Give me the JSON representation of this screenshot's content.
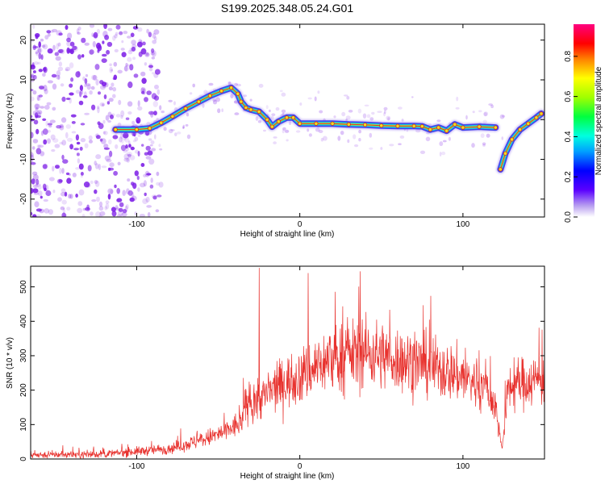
{
  "title": "S199.2025.348.05.24.G01",
  "colors": {
    "snr_line": "#e8322e",
    "background": "#ffffff",
    "scatter_purple": "#7a19e6",
    "track_core": "#e02020",
    "track_mid": "#25e6b0",
    "track_outer": "#3b3bea"
  },
  "chart_data": [
    {
      "type": "heatmap",
      "xlabel": "Height of straight line (km)",
      "ylabel": "Frequency (Hz)",
      "xlim": [
        -165,
        150
      ],
      "ylim": [
        -24.5,
        24
      ],
      "xticks": [
        -100,
        0,
        100
      ],
      "xtick_labels": [
        "-100",
        "0",
        "100"
      ],
      "yticks": [
        -20,
        -10,
        0,
        10,
        20
      ],
      "ytick_labels": [
        "-20",
        "-10",
        "0",
        "10",
        "20"
      ],
      "colorbar": {
        "label": "Normalized spectral amplitude",
        "range": [
          0,
          0.96
        ],
        "ticks": [
          0.0,
          0.2,
          0.4,
          0.6,
          0.8
        ],
        "tick_labels": [
          "0.0",
          "0.2",
          "0.4",
          "0.6",
          "0.8"
        ],
        "colormap": "rainbow (violet to magenta)"
      },
      "track_main": {
        "description": "dominant spectral peak frequency vs height",
        "x": [
          -113,
          -100,
          -92,
          -85,
          -78,
          -70,
          -62,
          -55,
          -48,
          -42,
          -38,
          -36,
          -33,
          -30,
          -25,
          -20,
          -17,
          -13,
          -8,
          -4,
          0,
          10,
          20,
          30,
          40,
          50,
          60,
          70,
          75,
          80,
          85,
          90,
          95,
          100,
          110,
          120
        ],
        "y": [
          -2.5,
          -2.5,
          -2.2,
          -0.8,
          0.8,
          2.8,
          4.5,
          6.0,
          7.2,
          8.0,
          6.5,
          4.5,
          3.0,
          2.5,
          2.0,
          0.0,
          -1.8,
          -0.5,
          0.5,
          0.5,
          -1.0,
          -1.0,
          -1.0,
          -1.2,
          -1.3,
          -1.5,
          -1.6,
          -1.6,
          -1.7,
          -2.5,
          -2.0,
          -2.8,
          -1.2,
          -2.0,
          -1.8,
          -2.0
        ]
      },
      "track_branch": {
        "description": "rising branch at high altitude",
        "x": [
          123,
          126,
          130,
          135,
          140,
          145,
          148
        ],
        "y": [
          -12.5,
          -8.5,
          -5.0,
          -2.5,
          -1.0,
          0.5,
          1.5
        ]
      },
      "noise_region": {
        "description": "scattered low-SNR points",
        "x_range": [
          -165,
          -85
        ]
      }
    },
    {
      "type": "line",
      "xlabel": "Height of straight line (km)",
      "ylabel": "SNR (10 * v/v)",
      "xlim": [
        -165,
        150
      ],
      "ylim": [
        0,
        560
      ],
      "xticks": [
        -100,
        0,
        100
      ],
      "xtick_labels": [
        "-100",
        "0",
        "100"
      ],
      "yticks": [
        0,
        100,
        200,
        300,
        400,
        500
      ],
      "ytick_labels": [
        "0",
        "100",
        "200",
        "300",
        "400",
        "500"
      ],
      "envelope": {
        "description": "approximate mean SNR vs height (noisy series)",
        "x": [
          -165,
          -120,
          -100,
          -80,
          -60,
          -45,
          -40,
          -36,
          -32,
          -28,
          -20,
          -10,
          0,
          10,
          20,
          30,
          40,
          60,
          80,
          100,
          115,
          120,
          124,
          128,
          135,
          145,
          150
        ],
        "y": [
          12,
          14,
          22,
          30,
          55,
          80,
          95,
          105,
          170,
          160,
          190,
          220,
          240,
          270,
          290,
          300,
          310,
          290,
          270,
          240,
          200,
          150,
          30,
          210,
          220,
          230,
          235
        ]
      },
      "peaks": [
        {
          "x": -25,
          "y": 555
        },
        {
          "x": 5,
          "y": 540
        },
        {
          "x": 37,
          "y": 545
        }
      ]
    }
  ]
}
